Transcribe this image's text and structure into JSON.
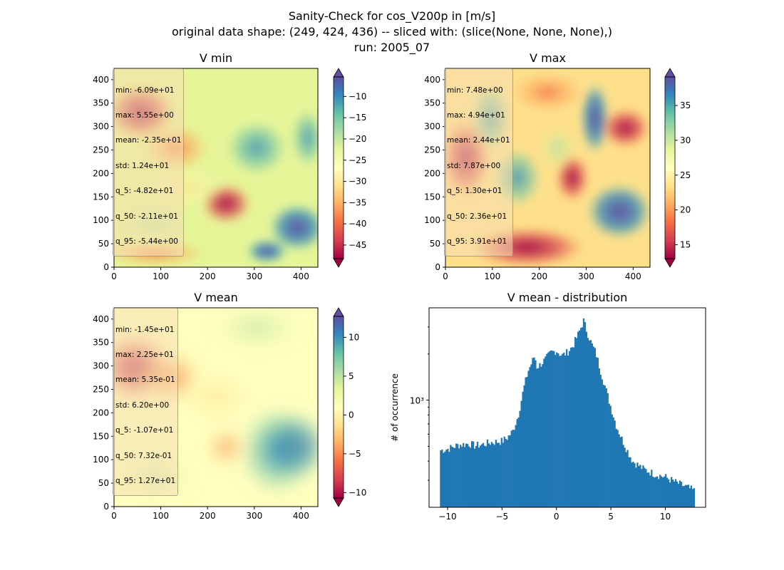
{
  "figure": {
    "title_lines": [
      "Sanity-Check for cos_V200p in [m/s]",
      "original data shape: (249, 424, 436) -- sliced with: (slice(None, None, None),)",
      "run: 2005_07"
    ]
  },
  "colors": {
    "hist_bar": "#1f77b4",
    "axis": "#000000"
  },
  "colormap": "Spectral",
  "chart_data": [
    {
      "type": "heatmap",
      "title": "V min",
      "x_ticks": [
        0,
        100,
        200,
        300,
        400
      ],
      "y_ticks": [
        0,
        50,
        100,
        150,
        200,
        250,
        300,
        350,
        400
      ],
      "xlim": [
        0,
        436
      ],
      "ylim": [
        0,
        424
      ],
      "colorbar": {
        "ticks": [
          -45,
          -40,
          -35,
          -30,
          -25,
          -20,
          -15,
          -10
        ],
        "range": [
          -48.2,
          -5.4
        ],
        "extend": "both"
      },
      "stats": [
        "min: -6.09e+01",
        "max: 5.55e+00",
        "mean: -2.35e+01",
        "std: 1.24e+01",
        "q_5: -4.82e+01",
        "q_50: -2.11e+01",
        "q_95: -5.44e+00"
      ]
    },
    {
      "type": "heatmap",
      "title": "V max",
      "x_ticks": [
        0,
        100,
        200,
        300,
        400
      ],
      "y_ticks": [
        0,
        50,
        100,
        150,
        200,
        250,
        300,
        350,
        400
      ],
      "xlim": [
        0,
        436
      ],
      "ylim": [
        0,
        424
      ],
      "colorbar": {
        "ticks": [
          15,
          20,
          25,
          30,
          35
        ],
        "range": [
          13.0,
          39.1
        ],
        "extend": "both"
      },
      "stats": [
        "min: 7.48e+00",
        "max: 4.94e+01",
        "mean: 2.44e+01",
        "std: 7.87e+00",
        "q_5: 1.30e+01",
        "q_50: 2.36e+01",
        "q_95: 3.91e+01"
      ]
    },
    {
      "type": "heatmap",
      "title": "V mean",
      "x_ticks": [
        0,
        100,
        200,
        300,
        400
      ],
      "y_ticks": [
        0,
        50,
        100,
        150,
        200,
        250,
        300,
        350,
        400
      ],
      "xlim": [
        0,
        436
      ],
      "ylim": [
        0,
        424
      ],
      "colorbar": {
        "ticks": [
          -10,
          -5,
          0,
          5,
          10
        ],
        "range": [
          -10.7,
          12.7
        ],
        "extend": "both"
      },
      "stats": [
        "min: -1.45e+01",
        "max: 2.25e+01",
        "mean: 5.35e-01",
        "std: 6.20e+00",
        "q_5: -1.07e+01",
        "q_50: 7.32e-01",
        "q_95: 1.27e+01"
      ]
    },
    {
      "type": "bar",
      "title": "V mean - distribution",
      "ylabel": "# of occurrence",
      "y_scale": "log",
      "x_ticks": [
        -10,
        -5,
        0,
        5,
        10
      ],
      "xlim": [
        -11.7,
        13.7
      ],
      "ylim": [
        200,
        4000
      ],
      "y_tick_label": "10³",
      "y_tick_value": 1000,
      "bin_range": [
        -10.7,
        12.7
      ],
      "bin_count": 180,
      "curve": [
        [
          -10.7,
          470
        ],
        [
          -10.0,
          480
        ],
        [
          -9.0,
          510
        ],
        [
          -8.0,
          520
        ],
        [
          -7.5,
          505
        ],
        [
          -7.0,
          510
        ],
        [
          -6.0,
          530
        ],
        [
          -5.0,
          540
        ],
        [
          -4.5,
          570
        ],
        [
          -4.0,
          630
        ],
        [
          -3.5,
          800
        ],
        [
          -3.0,
          1200
        ],
        [
          -2.6,
          1550
        ],
        [
          -2.2,
          1800
        ],
        [
          -2.0,
          1950
        ],
        [
          -1.8,
          1650
        ],
        [
          -1.5,
          1700
        ],
        [
          -1.0,
          1850
        ],
        [
          -0.5,
          2050
        ],
        [
          0.0,
          2100
        ],
        [
          0.5,
          1950
        ],
        [
          1.0,
          2050
        ],
        [
          1.5,
          2250
        ],
        [
          2.0,
          2700
        ],
        [
          2.5,
          3300
        ],
        [
          2.8,
          2800
        ],
        [
          3.2,
          2350
        ],
        [
          3.6,
          2050
        ],
        [
          4.0,
          1600
        ],
        [
          4.5,
          1200
        ],
        [
          5.0,
          900
        ],
        [
          5.5,
          680
        ],
        [
          6.0,
          560
        ],
        [
          6.5,
          470
        ],
        [
          7.0,
          400
        ],
        [
          8.0,
          355
        ],
        [
          9.0,
          330
        ],
        [
          10.0,
          315
        ],
        [
          11.0,
          290
        ],
        [
          12.0,
          270
        ],
        [
          12.7,
          255
        ]
      ]
    }
  ]
}
